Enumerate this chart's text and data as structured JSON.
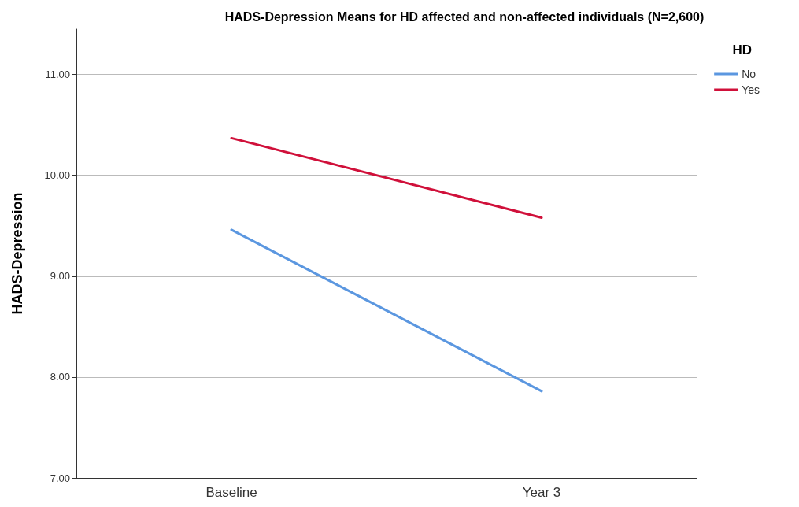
{
  "chart_data": {
    "type": "line",
    "title": "HADS-Depression Means for HD affected and non-affected individuals (N=2,600)",
    "ylabel": "HADS-Depression",
    "legend_title": "HD",
    "categories": [
      "Baseline",
      "Year 3"
    ],
    "series": [
      {
        "name": "No",
        "color": "#5b97e0",
        "values": [
          9.46,
          7.86
        ]
      },
      {
        "name": "Yes",
        "color": "#d0103a",
        "values": [
          10.37,
          9.58
        ]
      }
    ],
    "ylim": [
      7,
      11.45
    ],
    "yticks": [
      {
        "value": 7,
        "label": "7.00"
      },
      {
        "value": 8,
        "label": "8.00"
      },
      {
        "value": 9,
        "label": "9.00"
      },
      {
        "value": 10,
        "label": "10.00"
      },
      {
        "value": 11,
        "label": "11.00"
      }
    ],
    "grid": "y",
    "legend": "top right",
    "marker": "none",
    "line_style": "solid"
  }
}
